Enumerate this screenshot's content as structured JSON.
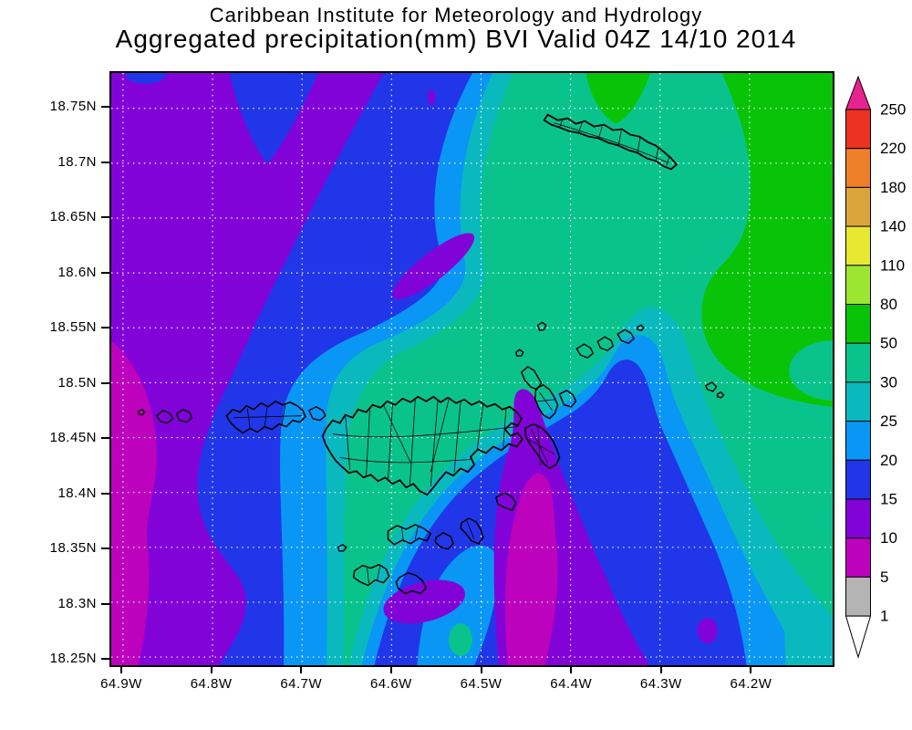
{
  "title": {
    "line1": "Caribbean Institute for Meteorology and Hydrology",
    "line2": "Aggregated precipitation(mm) BVI Valid 04Z 14/10 2014"
  },
  "axes": {
    "lat_labels": [
      "18.75N",
      "18.7N",
      "18.65N",
      "18.6N",
      "18.55N",
      "18.5N",
      "18.45N",
      "18.4N",
      "18.35N",
      "18.3N",
      "18.25N"
    ],
    "lon_labels": [
      "64.9W",
      "64.8W",
      "64.7W",
      "64.6W",
      "64.5W",
      "64.4W",
      "64.3W",
      "64.2W"
    ],
    "lat_range": [
      18.25,
      18.75
    ],
    "lon_range": [
      -64.9,
      -64.2
    ]
  },
  "colorbar": {
    "levels": [
      "250",
      "220",
      "180",
      "140",
      "110",
      "80",
      "50",
      "30",
      "25",
      "20",
      "15",
      "10",
      "5",
      "1"
    ],
    "segment_colors": [
      "#eb3223",
      "#ee7f2a",
      "#dca53c",
      "#e8e832",
      "#9ce632",
      "#09c309",
      "#0ac38c",
      "#0ab9be",
      "#0a96f5",
      "#2136e8",
      "#8203d8",
      "#bc02bc",
      "#b4b4b4"
    ],
    "over_arrow_color": "#e6238f",
    "under_arrow_color": "#ffffff"
  },
  "field": {
    "type": "filled_contour",
    "variable": "Aggregated precipitation",
    "units": "mm",
    "contour_levels": [
      1,
      5,
      10,
      15,
      20,
      25,
      30,
      50,
      80,
      110,
      140,
      180,
      220,
      250
    ],
    "palette": {
      "1-5": "#b4b4b4",
      "5-10": "#bc02bc",
      "10-15": "#8203d8",
      "15-20": "#2136e8",
      "20-25": "#0a96f5",
      "25-30": "#0ab9be",
      "30-50": "#0ac38c",
      "50-80": "#09c309",
      "80-110": "#9ce632",
      "110-140": "#e8e832",
      "140-180": "#dca53c",
      "180-220": "#ee7f2a",
      "220-250": "#eb3223",
      "over-250": "#e6238f"
    },
    "grid_color": "#ffffff",
    "coastline_color": "#000000",
    "summary": "Low precipitation (5-15mm, purple/magenta) over western third and in a pocket east of Tortola; bands of 15-30mm (blue to teal) sweeping diagonally; 30-80mm (sea-green to green) over the eastern half and around Anegada."
  }
}
